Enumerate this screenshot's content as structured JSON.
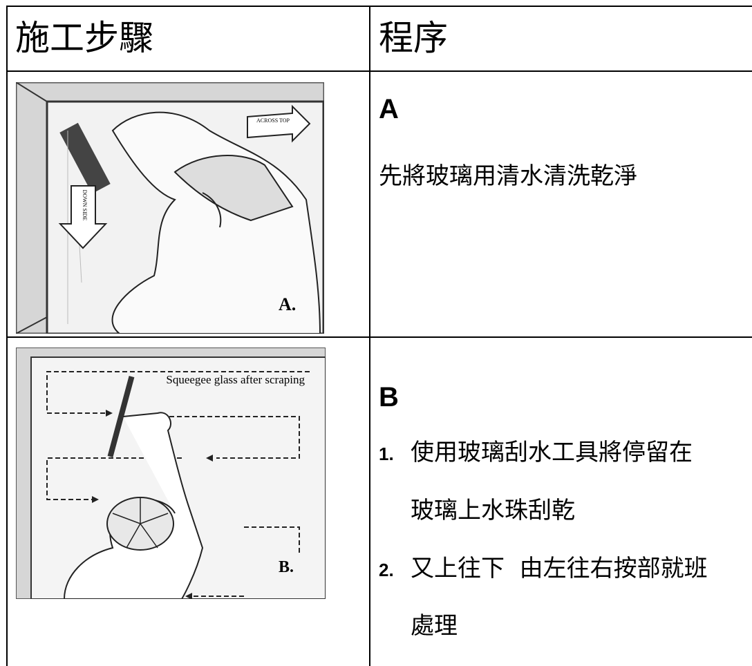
{
  "table": {
    "header": [
      "施工步驟",
      "程序"
    ],
    "rows": [
      {
        "illustration": {
          "arrow_top": "ACROSS TOP",
          "arrow_side": "DOWN SIDE",
          "caption": "A."
        },
        "step": "A",
        "text": "先將玻璃用清水清洗乾淨"
      },
      {
        "illustration": {
          "note": "Squeegee glass after scraping",
          "caption": "B."
        },
        "step": "B",
        "items": [
          {
            "number": "1.",
            "lines": [
              "使用玻璃刮水工具將停留在",
              "玻璃上水珠刮乾"
            ]
          },
          {
            "number": "2.",
            "lines": [
              "又上往下  由左往右按部就班",
              "處理"
            ]
          }
        ]
      }
    ]
  }
}
